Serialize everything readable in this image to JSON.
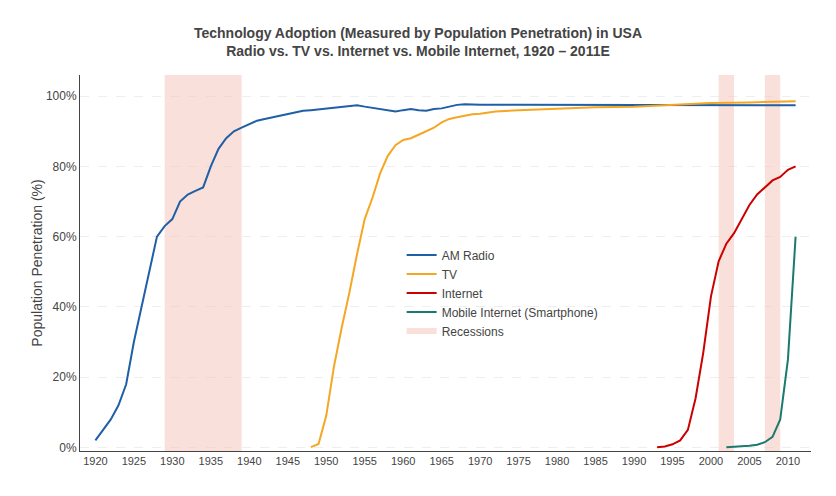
{
  "chart_data": {
    "type": "line",
    "title": "Technology Adoption (Measured by Population Penetration) in USA",
    "subtitle": "Radio vs. TV vs. Internet vs. Mobile Internet, 1920 – 2011E",
    "ylabel": "Population Penetration (%)",
    "xlim": [
      1918,
      2013
    ],
    "ylim": [
      -0.01,
      1.06
    ],
    "xticks": [
      1920,
      1925,
      1930,
      1935,
      1940,
      1945,
      1950,
      1955,
      1960,
      1965,
      1970,
      1975,
      1980,
      1985,
      1990,
      1995,
      2000,
      2005,
      2010
    ],
    "yticks": [
      {
        "value": 0,
        "label": "0%"
      },
      {
        "value": 0.2,
        "label": "20%"
      },
      {
        "value": 0.4,
        "label": "40%"
      },
      {
        "value": 0.6,
        "label": "60%"
      },
      {
        "value": 0.8,
        "label": "80%"
      },
      {
        "value": 1.0,
        "label": "100%"
      }
    ],
    "grid": true,
    "legend": "center",
    "series": [
      {
        "name": "AM Radio",
        "color": "#1f5fa6",
        "x": [
          1920,
          1921,
          1922,
          1923,
          1924,
          1925,
          1926,
          1927,
          1928,
          1929,
          1930,
          1931,
          1932,
          1933,
          1934,
          1935,
          1936,
          1937,
          1938,
          1939,
          1940,
          1941,
          1942,
          1943,
          1944,
          1945,
          1946,
          1947,
          1948,
          1949,
          1950,
          1951,
          1952,
          1953,
          1954,
          1955,
          1956,
          1957,
          1958,
          1959,
          1960,
          1961,
          1962,
          1963,
          1964,
          1965,
          1966,
          1967,
          1968,
          1969,
          1970,
          1975,
          1980,
          1985,
          1990,
          1995,
          2000,
          2005,
          2011
        ],
        "values": [
          0.02,
          0.05,
          0.08,
          0.12,
          0.18,
          0.3,
          0.4,
          0.5,
          0.6,
          0.63,
          0.65,
          0.7,
          0.72,
          0.73,
          0.74,
          0.8,
          0.85,
          0.88,
          0.9,
          0.91,
          0.92,
          0.93,
          0.935,
          0.94,
          0.945,
          0.95,
          0.955,
          0.958,
          0.96,
          0.962,
          0.965,
          0.968,
          0.97,
          0.972,
          0.974,
          0.97,
          0.966,
          0.962,
          0.958,
          0.956,
          0.96,
          0.963,
          0.96,
          0.958,
          0.963,
          0.965,
          0.97,
          0.975,
          0.977,
          0.976,
          0.975,
          0.975,
          0.975,
          0.975,
          0.974,
          0.974,
          0.974,
          0.974,
          0.974
        ]
      },
      {
        "name": "TV",
        "color": "#f5a623",
        "x": [
          1948,
          1949,
          1950,
          1951,
          1952,
          1953,
          1954,
          1955,
          1956,
          1957,
          1958,
          1959,
          1960,
          1961,
          1962,
          1963,
          1964,
          1965,
          1966,
          1967,
          1968,
          1969,
          1970,
          1971,
          1972,
          1975,
          1980,
          1985,
          1990,
          1995,
          2000,
          2005,
          2011
        ],
        "values": [
          0.001,
          0.01,
          0.09,
          0.23,
          0.34,
          0.44,
          0.55,
          0.65,
          0.71,
          0.78,
          0.83,
          0.86,
          0.875,
          0.88,
          0.89,
          0.9,
          0.91,
          0.925,
          0.935,
          0.94,
          0.945,
          0.948,
          0.95,
          0.953,
          0.956,
          0.96,
          0.965,
          0.968,
          0.97,
          0.975,
          0.98,
          0.982,
          0.985
        ]
      },
      {
        "name": "Internet",
        "color": "#cc0000",
        "x": [
          1993,
          1994,
          1995,
          1996,
          1997,
          1998,
          1999,
          2000,
          2001,
          2002,
          2003,
          2004,
          2005,
          2006,
          2007,
          2008,
          2009,
          2010,
          2011
        ],
        "values": [
          0.001,
          0.003,
          0.009,
          0.02,
          0.05,
          0.14,
          0.27,
          0.43,
          0.53,
          0.58,
          0.61,
          0.65,
          0.69,
          0.72,
          0.74,
          0.76,
          0.77,
          0.79,
          0.8
        ]
      },
      {
        "name": "Mobile Internet (Smartphone)",
        "color": "#1a7a6e",
        "x": [
          2002,
          2003,
          2004,
          2005,
          2006,
          2007,
          2008,
          2009,
          2010,
          2011
        ],
        "values": [
          0.001,
          0.002,
          0.003,
          0.005,
          0.008,
          0.015,
          0.03,
          0.08,
          0.25,
          0.6
        ]
      }
    ],
    "bands": {
      "name": "Recessions",
      "color": "#f5c6bc",
      "ranges": [
        [
          1929,
          1939
        ],
        [
          2001,
          2003
        ],
        [
          2007,
          2009
        ]
      ]
    }
  }
}
